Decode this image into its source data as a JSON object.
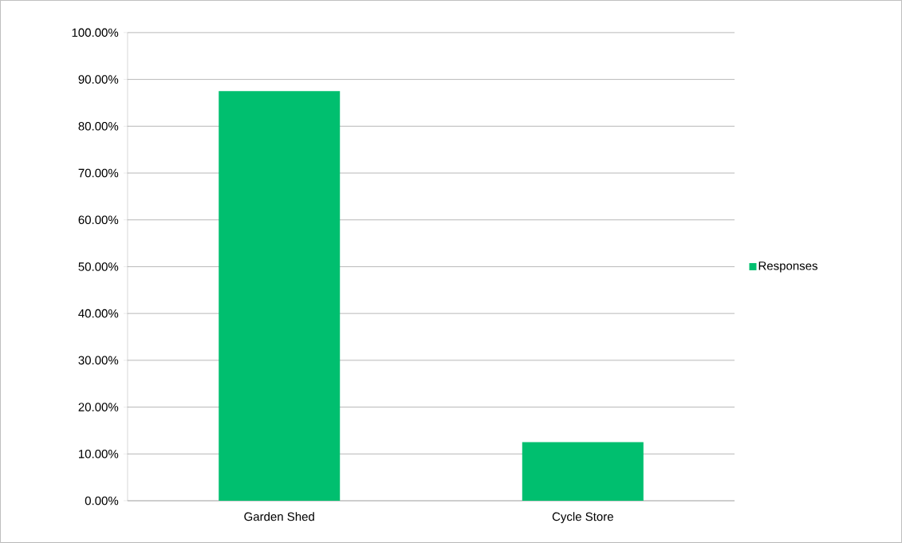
{
  "chart_data": {
    "type": "bar",
    "categories": [
      "Garden Shed",
      "Cycle Store"
    ],
    "series": [
      {
        "name": "Responses",
        "color": "#00bf6f",
        "values": [
          87.5,
          12.5
        ]
      }
    ],
    "ylim": [
      0,
      100
    ],
    "yticks": [
      {
        "value": 0,
        "label": "0.00%"
      },
      {
        "value": 10,
        "label": "10.00%"
      },
      {
        "value": 20,
        "label": "20.00%"
      },
      {
        "value": 30,
        "label": "30.00%"
      },
      {
        "value": 40,
        "label": "40.00%"
      },
      {
        "value": 50,
        "label": "50.00%"
      },
      {
        "value": 60,
        "label": "60.00%"
      },
      {
        "value": 70,
        "label": "70.00%"
      },
      {
        "value": 80,
        "label": "80.00%"
      },
      {
        "value": 90,
        "label": "90.00%"
      },
      {
        "value": 100,
        "label": "100.00%"
      }
    ],
    "grid": "y",
    "legend": "right"
  }
}
